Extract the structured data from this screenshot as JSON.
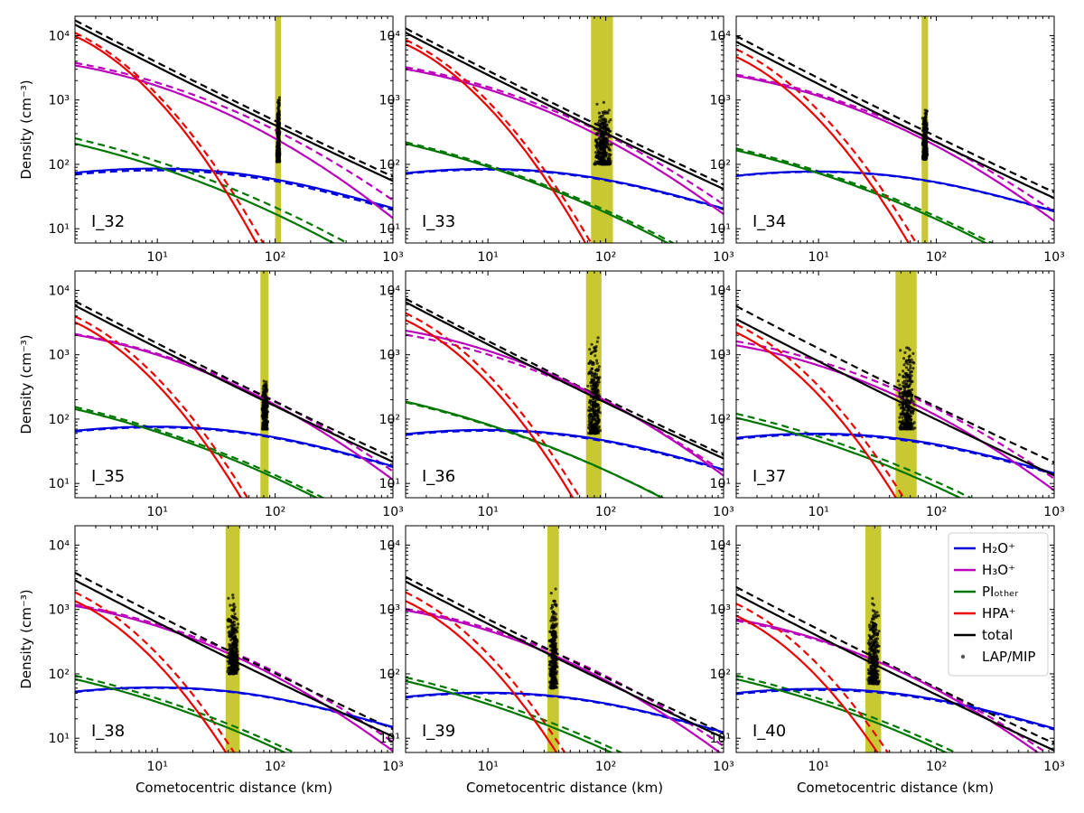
{
  "figure": {
    "xlabel": "Cometocentric distance (km)",
    "ylabel": "Density (cm⁻³)"
  },
  "axes": {
    "x_range": [
      2,
      1000
    ],
    "y_range": [
      6,
      20000
    ],
    "x_ticks": [
      {
        "value": 10,
        "label": "10¹"
      },
      {
        "value": 100,
        "label": "10²"
      },
      {
        "value": 1000,
        "label": "10³"
      }
    ],
    "y_ticks": [
      {
        "value": 10,
        "label": "10¹"
      },
      {
        "value": 100,
        "label": "10²"
      },
      {
        "value": 1000,
        "label": "10³"
      },
      {
        "value": 10000,
        "label": "10⁴"
      }
    ],
    "scale": "log-log"
  },
  "legend": {
    "placement": "top-right of last panel",
    "entries": [
      {
        "key": "h2o",
        "label": "H₂O⁺",
        "color": "#0000dd"
      },
      {
        "key": "h3o",
        "label": "H₃O⁺",
        "color": "#bb00bb"
      },
      {
        "key": "pio",
        "label": "PIₒₜₕₑᵣ",
        "color": "#007700"
      },
      {
        "key": "hpa",
        "label": "HPA⁺",
        "color": "#ee0000"
      },
      {
        "key": "tot",
        "label": "total",
        "color": "#000000"
      },
      {
        "key": "obs",
        "label": "LAP/MIP",
        "color": "#555555"
      }
    ]
  },
  "colors": {
    "h2o": "#0000dd",
    "h3o": "#bb00bb",
    "pio": "#007700",
    "hpa": "#ee0000",
    "tot": "#000000",
    "band": "#c8c832",
    "obs": "#000000"
  },
  "chart_data": [
    {
      "type": "line",
      "title": "I_32",
      "band": [
        100,
        112
      ],
      "obs": {
        "r": [
          103,
          110
        ],
        "n": [
          110,
          1300
        ]
      },
      "series_solid": {
        "h2o": {
          "A": 81,
          "p": 0.05
        },
        "h3o": {
          "A": 3200,
          "c": 0.6
        },
        "pio": {
          "A": 190,
          "c": 0.53
        },
        "hpa": {
          "A": 8000,
          "c": 1.0
        },
        "tot": {
          "A": 12000,
          "c": 0.62
        }
      },
      "series_dashed": {
        "h2o": {
          "A": 76,
          "p": 0.05
        },
        "h3o": {
          "A": 3500,
          "c": 0.5
        },
        "pio": {
          "A": 230,
          "c": 0.5
        },
        "hpa": {
          "A": 9000,
          "c": 0.92
        },
        "tot": {
          "A": 14000,
          "c": 0.57
        }
      }
    },
    {
      "type": "line",
      "title": "I_33",
      "band": [
        75,
        115
      ],
      "obs": {
        "r": [
          78,
          112
        ],
        "n": [
          100,
          1000
        ]
      },
      "series_solid": {
        "h2o": {
          "A": 80,
          "p": 0.05
        },
        "h3o": {
          "A": 2800,
          "c": 0.55
        },
        "pio": {
          "A": 190,
          "c": 0.5
        },
        "hpa": {
          "A": 6000,
          "c": 0.95
        },
        "tot": {
          "A": 9000,
          "c": 0.6
        }
      },
      "series_dashed": {
        "h2o": {
          "A": 78,
          "p": 0.05
        },
        "h3o": {
          "A": 3000,
          "c": 0.5
        },
        "pio": {
          "A": 200,
          "c": 0.48
        },
        "hpa": {
          "A": 7000,
          "c": 0.9
        },
        "tot": {
          "A": 10500,
          "c": 0.55
        }
      }
    },
    {
      "type": "line",
      "title": "I_34",
      "band": [
        75,
        85
      ],
      "obs": {
        "r": [
          76,
          84
        ],
        "n": [
          120,
          800
        ]
      },
      "series_solid": {
        "h2o": {
          "A": 73,
          "p": 0.05
        },
        "h3o": {
          "A": 2200,
          "c": 0.55
        },
        "pio": {
          "A": 150,
          "c": 0.5
        },
        "hpa": {
          "A": 3800,
          "c": 0.95
        },
        "tot": {
          "A": 6500,
          "c": 0.6
        }
      },
      "series_dashed": {
        "h2o": {
          "A": 72,
          "p": 0.05
        },
        "h3o": {
          "A": 2300,
          "c": 0.5
        },
        "pio": {
          "A": 160,
          "c": 0.48
        },
        "hpa": {
          "A": 5000,
          "c": 0.9
        },
        "tot": {
          "A": 8000,
          "c": 0.55
        }
      }
    },
    {
      "type": "line",
      "title": "I_35",
      "band": [
        75,
        88
      ],
      "obs": {
        "r": [
          77,
          87
        ],
        "n": [
          70,
          500
        ]
      },
      "series_solid": {
        "h2o": {
          "A": 72,
          "p": 0.05
        },
        "h3o": {
          "A": 1900,
          "c": 0.55
        },
        "pio": {
          "A": 130,
          "c": 0.5
        },
        "hpa": {
          "A": 2600,
          "c": 0.95
        },
        "tot": {
          "A": 4700,
          "c": 0.6
        }
      },
      "series_dashed": {
        "h2o": {
          "A": 70,
          "p": 0.05
        },
        "h3o": {
          "A": 1950,
          "c": 0.5
        },
        "pio": {
          "A": 140,
          "c": 0.48
        },
        "hpa": {
          "A": 3200,
          "c": 0.9
        },
        "tot": {
          "A": 5500,
          "c": 0.55
        }
      }
    },
    {
      "type": "line",
      "title": "I_36",
      "band": [
        68,
        92
      ],
      "obs": {
        "r": [
          70,
          90
        ],
        "n": [
          60,
          2200
        ]
      },
      "series_solid": {
        "h2o": {
          "A": 64,
          "p": 0.05
        },
        "h3o": {
          "A": 2200,
          "c": 0.55
        },
        "pio": {
          "A": 170,
          "c": 0.5
        },
        "hpa": {
          "A": 2800,
          "c": 0.95
        },
        "tot": {
          "A": 5300,
          "c": 0.6
        }
      },
      "series_dashed": {
        "h2o": {
          "A": 62,
          "p": 0.05
        },
        "h3o": {
          "A": 1900,
          "c": 0.5
        },
        "pio": {
          "A": 165,
          "c": 0.48
        },
        "hpa": {
          "A": 3600,
          "c": 0.9
        },
        "tot": {
          "A": 6000,
          "c": 0.55
        }
      }
    },
    {
      "type": "line",
      "title": "I_37",
      "band": [
        45,
        68
      ],
      "obs": {
        "r": [
          47,
          66
        ],
        "n": [
          70,
          1600
        ]
      },
      "series_solid": {
        "h2o": {
          "A": 56,
          "p": 0.05
        },
        "h3o": {
          "A": 1300,
          "c": 0.55
        },
        "pio": {
          "A": 95,
          "c": 0.5
        },
        "hpa": {
          "A": 1800,
          "c": 0.95
        },
        "tot": {
          "A": 2900,
          "c": 0.6
        }
      },
      "series_dashed": {
        "h2o": {
          "A": 54,
          "p": 0.05
        },
        "h3o": {
          "A": 1500,
          "c": 0.5
        },
        "pio": {
          "A": 110,
          "c": 0.48
        },
        "hpa": {
          "A": 2400,
          "c": 0.9
        },
        "tot": {
          "A": 4600,
          "c": 0.55
        }
      }
    },
    {
      "type": "line",
      "title": "I_38",
      "band": [
        38,
        50
      ],
      "obs": {
        "r": [
          39,
          49
        ],
        "n": [
          100,
          1900
        ]
      },
      "series_solid": {
        "h2o": {
          "A": 58,
          "p": 0.05
        },
        "h3o": {
          "A": 1050,
          "c": 0.55
        },
        "pio": {
          "A": 75,
          "c": 0.5
        },
        "hpa": {
          "A": 1100,
          "c": 0.95
        },
        "tot": {
          "A": 2300,
          "c": 0.6
        }
      },
      "series_dashed": {
        "h2o": {
          "A": 57,
          "p": 0.05
        },
        "h3o": {
          "A": 1100,
          "c": 0.5
        },
        "pio": {
          "A": 85,
          "c": 0.48
        },
        "hpa": {
          "A": 1500,
          "c": 0.9
        },
        "tot": {
          "A": 3000,
          "c": 0.55
        }
      }
    },
    {
      "type": "line",
      "title": "I_39",
      "band": [
        32,
        40
      ],
      "obs": {
        "r": [
          33,
          39
        ],
        "n": [
          60,
          2300
        ]
      },
      "series_solid": {
        "h2o": {
          "A": 48,
          "p": 0.05
        },
        "h3o": {
          "A": 900,
          "c": 0.55
        },
        "pio": {
          "A": 70,
          "c": 0.5
        },
        "hpa": {
          "A": 1100,
          "c": 0.95
        },
        "tot": {
          "A": 2200,
          "c": 0.6
        }
      },
      "series_dashed": {
        "h2o": {
          "A": 47,
          "p": 0.05
        },
        "h3o": {
          "A": 950,
          "c": 0.5
        },
        "pio": {
          "A": 80,
          "c": 0.48
        },
        "hpa": {
          "A": 1500,
          "c": 0.9
        },
        "tot": {
          "A": 2600,
          "c": 0.55
        }
      }
    },
    {
      "type": "line",
      "title": "I_40",
      "band": [
        25,
        34
      ],
      "obs": {
        "r": [
          26,
          33
        ],
        "n": [
          70,
          1700
        ]
      },
      "series_solid": {
        "h2o": {
          "A": 55,
          "p": 0.05
        },
        "h3o": {
          "A": 650,
          "c": 0.55
        },
        "pio": {
          "A": 75,
          "c": 0.5
        },
        "hpa": {
          "A": 650,
          "c": 0.95
        },
        "tot": {
          "A": 1400,
          "c": 0.6
        }
      },
      "series_dashed": {
        "h2o": {
          "A": 53,
          "p": 0.05
        },
        "h3o": {
          "A": 620,
          "c": 0.5
        },
        "pio": {
          "A": 85,
          "c": 0.48
        },
        "hpa": {
          "A": 1000,
          "c": 0.9
        },
        "tot": {
          "A": 1800,
          "c": 0.55
        }
      }
    }
  ]
}
